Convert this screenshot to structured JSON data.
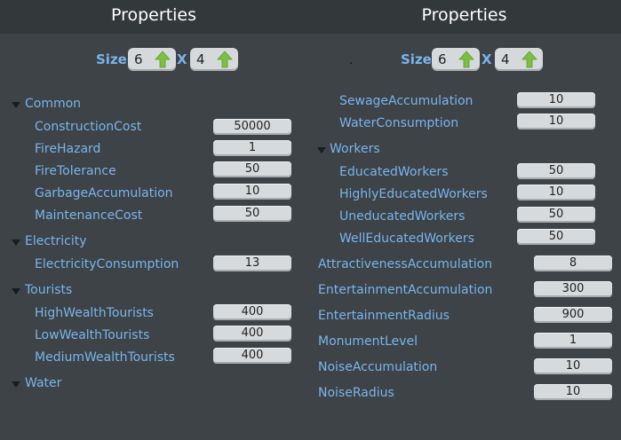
{
  "left": {
    "title": "Properties",
    "size": {
      "label": "Size",
      "width": "6",
      "x_label": "X",
      "height": "4"
    },
    "groups": {
      "common": {
        "label": "Common",
        "items": [
          {
            "label": "ConstructionCost",
            "value": "50000"
          },
          {
            "label": "FireHazard",
            "value": "1"
          },
          {
            "label": "FireTolerance",
            "value": "50"
          },
          {
            "label": "GarbageAccumulation",
            "value": "10"
          },
          {
            "label": "MaintenanceCost",
            "value": "50"
          }
        ]
      },
      "electricity": {
        "label": "Electricity",
        "items": [
          {
            "label": "ElectricityConsumption",
            "value": "13"
          }
        ]
      },
      "tourists": {
        "label": "Tourists",
        "items": [
          {
            "label": "HighWealthTourists",
            "value": "400"
          },
          {
            "label": "LowWealthTourists",
            "value": "400"
          },
          {
            "label": "MediumWealthTourists",
            "value": "400"
          }
        ]
      },
      "water": {
        "label": "Water"
      }
    }
  },
  "right": {
    "title": "Properties",
    "size": {
      "label": "Size",
      "width": "6",
      "x_label": "X",
      "height": "4"
    },
    "water_items": [
      {
        "label": "SewageAccumulation",
        "value": "10"
      },
      {
        "label": "WaterConsumption",
        "value": "10"
      }
    ],
    "workers": {
      "label": "Workers",
      "items": [
        {
          "label": "EducatedWorkers",
          "value": "50"
        },
        {
          "label": "HighlyEducatedWorkers",
          "value": "10"
        },
        {
          "label": "UneducatedWorkers",
          "value": "50"
        },
        {
          "label": "WellEducatedWorkers",
          "value": "50"
        }
      ]
    },
    "items": [
      {
        "label": "AttractivenessAccumulation",
        "value": "8"
      },
      {
        "label": "EntertainmentAccumulation",
        "value": "300"
      },
      {
        "label": "EntertainmentRadius",
        "value": "900"
      },
      {
        "label": "MonumentLevel",
        "value": "1"
      },
      {
        "label": "NoiseAccumulation",
        "value": "10"
      },
      {
        "label": "NoiseRadius",
        "value": "10"
      }
    ]
  },
  "colors": {
    "background": "#3d4347",
    "title_bar": "#33383b",
    "label": "#7ab4ec",
    "field": "#d7dadc",
    "arrow": "#7ac143"
  }
}
